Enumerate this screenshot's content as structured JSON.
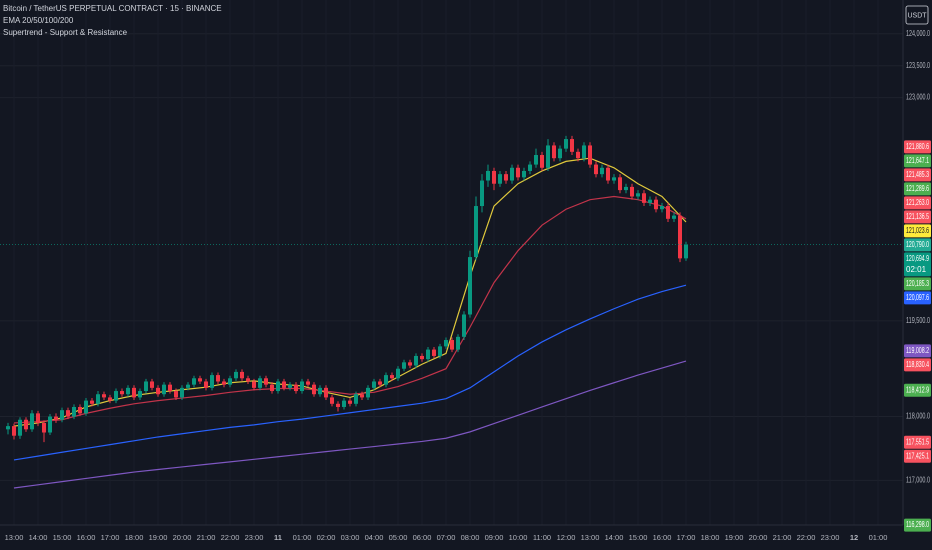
{
  "chart_data": {
    "type": "candlestick",
    "title": "Bitcoin / TetherUS PERPETUAL CONTRACT · 15 · BINANCE",
    "indicators": [
      "EMA 20/50/100/200",
      "Supertrend - Support & Resistance"
    ],
    "currency": "USDT",
    "categories": [
      "13:00",
      "14:00",
      "15:00",
      "16:00",
      "17:00",
      "18:00",
      "19:00",
      "20:00",
      "21:00",
      "22:00",
      "23:00",
      "11",
      "01:00",
      "02:00",
      "03:00",
      "04:00",
      "05:00",
      "06:00",
      "07:00",
      "08:00",
      "09:00",
      "10:00",
      "11:00",
      "12:00",
      "13:00",
      "14:00",
      "15:00",
      "16:00",
      "17:00",
      "18:00",
      "19:00",
      "20:00",
      "21:00",
      "22:00",
      "23:00",
      "12",
      "01:00"
    ],
    "ylim": [
      116300,
      124530
    ],
    "yticks": [
      {
        "value": 124000,
        "label": "124,000.0"
      },
      {
        "value": 123500,
        "label": "123,500.0"
      },
      {
        "value": 123000,
        "label": "123,000.0"
      },
      {
        "value": 119500,
        "label": "119,500.0"
      },
      {
        "value": 118000,
        "label": "118,000.0"
      },
      {
        "value": 117000,
        "label": "117,000.0"
      }
    ],
    "grid": true,
    "up_color": "#089981",
    "down_color": "#f23645",
    "ohlc": [
      [
        117800,
        117900,
        117720,
        117850
      ],
      [
        117850,
        117890,
        117640,
        117700
      ],
      [
        117700,
        117990,
        117650,
        117950
      ],
      [
        117950,
        117990,
        117760,
        117800
      ],
      [
        117800,
        118100,
        117760,
        118050
      ],
      [
        118050,
        118090,
        117850,
        117900
      ],
      [
        117900,
        117940,
        117600,
        117750
      ],
      [
        117750,
        118040,
        117710,
        118000
      ],
      [
        118000,
        118050,
        117900,
        117950
      ],
      [
        117950,
        118140,
        117910,
        118100
      ],
      [
        118100,
        118140,
        117960,
        118000
      ],
      [
        118000,
        118190,
        117960,
        118150
      ],
      [
        118150,
        118190,
        118010,
        118050
      ],
      [
        118050,
        118290,
        118010,
        118250
      ],
      [
        118250,
        118290,
        118160,
        118200
      ],
      [
        118200,
        118400,
        118160,
        118350
      ],
      [
        118350,
        118390,
        118260,
        118300
      ],
      [
        118300,
        118340,
        118210,
        118250
      ],
      [
        118250,
        118440,
        118210,
        118400
      ],
      [
        118400,
        118440,
        118310,
        118350
      ],
      [
        118350,
        118490,
        118310,
        118450
      ],
      [
        118450,
        118490,
        118260,
        118300
      ],
      [
        118300,
        118440,
        118260,
        118400
      ],
      [
        118400,
        118590,
        118360,
        118550
      ],
      [
        118550,
        118590,
        118410,
        118450
      ],
      [
        118450,
        118490,
        118310,
        118350
      ],
      [
        118350,
        118540,
        118310,
        118500
      ],
      [
        118500,
        118540,
        118360,
        118400
      ],
      [
        118400,
        118440,
        118260,
        118300
      ],
      [
        118300,
        118490,
        118260,
        118450
      ],
      [
        118450,
        118540,
        118410,
        118500
      ],
      [
        118500,
        118640,
        118460,
        118600
      ],
      [
        118600,
        118640,
        118510,
        118550
      ],
      [
        118550,
        118590,
        118410,
        118450
      ],
      [
        118450,
        118690,
        118410,
        118650
      ],
      [
        118650,
        118690,
        118510,
        118550
      ],
      [
        118550,
        118590,
        118460,
        118500
      ],
      [
        118500,
        118640,
        118460,
        118600
      ],
      [
        118600,
        118740,
        118560,
        118700
      ],
      [
        118700,
        118740,
        118560,
        118600
      ],
      [
        118600,
        118640,
        118510,
        118550
      ],
      [
        118550,
        118590,
        118410,
        118450
      ],
      [
        118450,
        118640,
        118410,
        118600
      ],
      [
        118600,
        118640,
        118460,
        118500
      ],
      [
        118500,
        118540,
        118360,
        118400
      ],
      [
        118400,
        118590,
        118360,
        118550
      ],
      [
        118550,
        118590,
        118410,
        118450
      ],
      [
        118450,
        118540,
        118410,
        118500
      ],
      [
        118500,
        118540,
        118360,
        118400
      ],
      [
        118400,
        118590,
        118360,
        118550
      ],
      [
        118550,
        118590,
        118460,
        118500
      ],
      [
        118500,
        118540,
        118310,
        118350
      ],
      [
        118350,
        118490,
        118310,
        118450
      ],
      [
        118450,
        118490,
        118260,
        118300
      ],
      [
        118300,
        118340,
        118160,
        118200
      ],
      [
        118200,
        118240,
        118080,
        118150
      ],
      [
        118150,
        118290,
        118110,
        118250
      ],
      [
        118250,
        118290,
        118160,
        118200
      ],
      [
        118200,
        118390,
        118160,
        118350
      ],
      [
        118350,
        118390,
        118260,
        118300
      ],
      [
        118300,
        118490,
        118260,
        118450
      ],
      [
        118450,
        118590,
        118410,
        118550
      ],
      [
        118550,
        118590,
        118460,
        118500
      ],
      [
        118500,
        118690,
        118460,
        118650
      ],
      [
        118650,
        118690,
        118560,
        118600
      ],
      [
        118600,
        118790,
        118560,
        118750
      ],
      [
        118750,
        118890,
        118710,
        118850
      ],
      [
        118850,
        118890,
        118760,
        118800
      ],
      [
        118800,
        118990,
        118760,
        118950
      ],
      [
        118950,
        118990,
        118860,
        118900
      ],
      [
        118900,
        119090,
        118860,
        119050
      ],
      [
        119050,
        119090,
        118910,
        118950
      ],
      [
        118950,
        119140,
        118910,
        119100
      ],
      [
        119100,
        119240,
        119060,
        119200
      ],
      [
        119200,
        119240,
        119010,
        119050
      ],
      [
        119050,
        119290,
        119010,
        119250
      ],
      [
        119250,
        119650,
        119200,
        119600
      ],
      [
        119600,
        120600,
        119550,
        120500
      ],
      [
        120500,
        121450,
        120450,
        121300
      ],
      [
        121300,
        121800,
        121200,
        121700
      ],
      [
        121700,
        121950,
        121600,
        121850
      ],
      [
        121850,
        121900,
        121550,
        121650
      ],
      [
        121650,
        121850,
        121600,
        121800
      ],
      [
        121800,
        121850,
        121650,
        121700
      ],
      [
        121700,
        121950,
        121650,
        121900
      ],
      [
        121900,
        121950,
        121700,
        121750
      ],
      [
        121750,
        121900,
        121700,
        121850
      ],
      [
        121850,
        122000,
        121800,
        121950
      ],
      [
        121950,
        122200,
        121900,
        122100
      ],
      [
        122100,
        122150,
        121850,
        121900
      ],
      [
        121900,
        122350,
        121850,
        122250
      ],
      [
        122250,
        122300,
        122000,
        122050
      ],
      [
        122050,
        122250,
        122000,
        122200
      ],
      [
        122200,
        122400,
        122150,
        122350
      ],
      [
        122350,
        122400,
        122100,
        122150
      ],
      [
        122150,
        122200,
        122000,
        122050
      ],
      [
        122050,
        122300,
        122000,
        122250
      ],
      [
        122250,
        122300,
        121900,
        121950
      ],
      [
        121950,
        122000,
        121750,
        121800
      ],
      [
        121800,
        121950,
        121750,
        121900
      ],
      [
        121900,
        121950,
        121650,
        121700
      ],
      [
        121700,
        121800,
        121650,
        121750
      ],
      [
        121750,
        121800,
        121500,
        121550
      ],
      [
        121550,
        121650,
        121500,
        121600
      ],
      [
        121600,
        121650,
        121400,
        121450
      ],
      [
        121450,
        121550,
        121400,
        121500
      ],
      [
        121500,
        121550,
        121300,
        121350
      ],
      [
        121350,
        121450,
        121300,
        121400
      ],
      [
        121400,
        121450,
        121200,
        121250
      ],
      [
        121250,
        121350,
        121200,
        121300
      ],
      [
        121300,
        121350,
        121050,
        121100
      ],
      [
        121100,
        121200,
        121050,
        121150
      ],
      [
        121150,
        121200,
        120420,
        120480
      ],
      [
        120480,
        120740,
        120440,
        120694.9
      ]
    ],
    "series": [
      {
        "color": "#e0c93c",
        "values": [
          117850,
          117900,
          117980,
          118150,
          118250,
          118330,
          118380,
          118420,
          118460,
          118530,
          118560,
          118510,
          118480,
          118380,
          118300,
          118420,
          118620,
          118820,
          118990,
          120200,
          121300,
          121650,
          121850,
          122000,
          122050,
          121900,
          121650,
          121450,
          121050,
          null,
          null,
          null,
          null,
          null,
          null,
          null,
          null
        ]
      },
      {
        "color": "#c2344a",
        "values": [
          117900,
          117920,
          117950,
          118050,
          118130,
          118200,
          118250,
          118290,
          118330,
          118380,
          118420,
          118440,
          118440,
          118400,
          118350,
          118380,
          118470,
          118600,
          118750,
          119400,
          120100,
          120600,
          121000,
          121250,
          121400,
          121450,
          121400,
          121300,
          121100,
          null,
          null,
          null,
          null,
          null,
          null,
          null,
          null
        ]
      },
      {
        "color": "#2962ff",
        "values": [
          117320,
          117380,
          117440,
          117500,
          117560,
          117620,
          117680,
          117730,
          117780,
          117830,
          117870,
          117920,
          117960,
          118010,
          118060,
          118110,
          118160,
          118210,
          118280,
          118450,
          118700,
          118950,
          119170,
          119360,
          119530,
          119690,
          119840,
          119960,
          120060,
          null,
          null,
          null,
          null,
          null,
          null,
          null,
          null
        ]
      },
      {
        "color": "#7e57c2",
        "values": [
          116880,
          116930,
          116980,
          117030,
          117080,
          117130,
          117170,
          117210,
          117250,
          117290,
          117330,
          117370,
          117410,
          117450,
          117490,
          117530,
          117570,
          117610,
          117660,
          117760,
          117890,
          118020,
          118150,
          118280,
          118410,
          118530,
          118650,
          118760,
          118870,
          null,
          null,
          null,
          null,
          null,
          null,
          null,
          null
        ]
      }
    ],
    "price_labels": [
      {
        "value": 121880.6,
        "label": "121,880.6",
        "color": "#f7525f"
      },
      {
        "value": 121647.1,
        "label": "121,647.1",
        "color": "#4caf50"
      },
      {
        "value": 121485.3,
        "label": "121,485.3",
        "color": "#f7525f"
      },
      {
        "value": 121289.6,
        "label": "121,289.6",
        "color": "#4caf50"
      },
      {
        "value": 121263.0,
        "label": "121,263.0",
        "color": "#f7525f"
      },
      {
        "value": 121136.5,
        "label": "121,136.5",
        "color": "#f7525f"
      },
      {
        "value": 121023.6,
        "label": "121,023.6",
        "color": "#ffeb3b"
      },
      {
        "value": 120790.0,
        "label": "120,790.0",
        "color": "#22ab94"
      },
      {
        "value": 120694.9,
        "label": "120,694.9",
        "color": "#089981",
        "countdown": "02:01"
      },
      {
        "value": 120185.3,
        "label": "120,185.3",
        "color": "#4caf50"
      },
      {
        "value": 120097.6,
        "label": "120,097.6",
        "color": "#2962ff"
      },
      {
        "value": 119008.2,
        "label": "119,008.2",
        "color": "#7e57c2"
      },
      {
        "value": 118830.4,
        "label": "118,830.4",
        "color": "#f7525f"
      },
      {
        "value": 118412.9,
        "label": "118,412.9",
        "color": "#4caf50"
      },
      {
        "value": 117551.5,
        "label": "117,551.5",
        "color": "#f7525f"
      },
      {
        "value": 117425.1,
        "label": "117,425.1",
        "color": "#f7525f"
      },
      {
        "value": 116298.0,
        "label": "116,298.0",
        "color": "#4caf50"
      }
    ]
  }
}
